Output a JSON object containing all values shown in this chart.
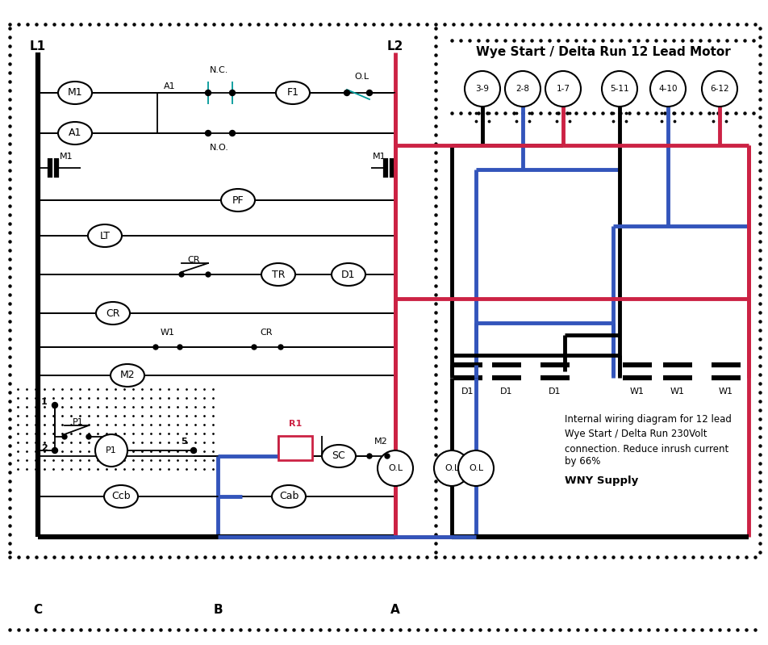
{
  "title": "Wye Start / Delta Run 12 Lead Motor",
  "bg_color": "#ffffff",
  "black": "#000000",
  "red": "#cc2244",
  "blue": "#3355bb",
  "cyan": "#009999",
  "annotation_line1": "Internal wiring diagram for 12 lead",
  "annotation_line2": "Wye Start / Delta Run 230Volt",
  "annotation_line3": "connection. Reduce inrush current",
  "annotation_line4": "by 66%",
  "annotation_line5": "WNY Supply",
  "motor_terminals": [
    "3-9",
    "2-8",
    "1-7",
    "5-11",
    "4-10",
    "6-12"
  ]
}
